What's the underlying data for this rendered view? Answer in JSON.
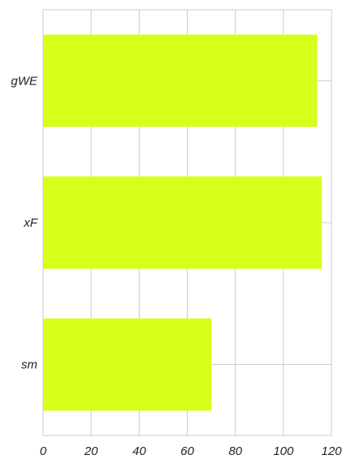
{
  "chart_data": {
    "type": "bar",
    "orientation": "horizontal",
    "categories": [
      "sm",
      "xF",
      "gWE"
    ],
    "values": [
      70,
      116,
      114
    ],
    "xlim": [
      0,
      120
    ],
    "xticks": [
      0,
      20,
      40,
      60,
      80,
      100,
      120
    ],
    "grid": true,
    "bar_color": "#d6ff1a",
    "title": "",
    "xlabel": "",
    "ylabel": ""
  }
}
